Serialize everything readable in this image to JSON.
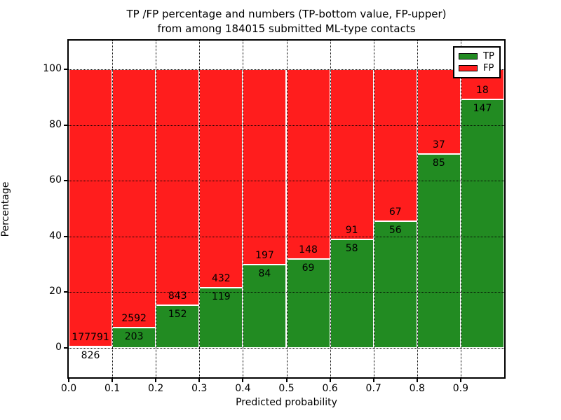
{
  "figure": {
    "title_line1": "TP /FP percentage and numbers (TP-bottom value, FP-upper)",
    "title_line2": "from among 184015 submitted ML-type contacts",
    "xlabel": "Predicted probability",
    "ylabel": "Percentage"
  },
  "legend": {
    "position": "upper right",
    "items": [
      {
        "label": "TP",
        "color": "#228b22"
      },
      {
        "label": "FP",
        "color": "#ff1d1d"
      }
    ]
  },
  "colors": {
    "tp_green": "#228b22",
    "fp_red": "#ff1d1d",
    "grid": "#000000",
    "text": "#000000",
    "background": "#ffffff"
  },
  "chart_data": {
    "type": "bar",
    "stacked": true,
    "normalized_to_percent": true,
    "title": "TP /FP percentage and numbers (TP-bottom value, FP-upper) from among 184015 submitted ML-type contacts",
    "xlabel": "Predicted probability",
    "ylabel": "Percentage",
    "total_contacts": 184015,
    "bin_width": 0.1,
    "bin_starts": [
      0.0,
      0.1,
      0.2,
      0.3,
      0.4,
      0.5,
      0.6,
      0.7,
      0.8,
      0.9
    ],
    "series": [
      {
        "name": "TP",
        "color": "#228b22",
        "counts": [
          826,
          203,
          152,
          119,
          84,
          69,
          58,
          56,
          85,
          147
        ]
      },
      {
        "name": "FP",
        "color": "#ff1d1d",
        "counts": [
          177791,
          2592,
          843,
          432,
          197,
          148,
          91,
          67,
          37,
          18
        ]
      }
    ],
    "tp_percent_approx": [
      0.46,
      7.26,
      15.28,
      21.6,
      29.89,
      31.8,
      38.93,
      45.53,
      69.67,
      89.09
    ],
    "x_tick_labels": [
      "0.0",
      "0.1",
      "0.2",
      "0.3",
      "0.4",
      "0.5",
      "0.6",
      "0.7",
      "0.8",
      "0.9"
    ],
    "y_tick_values": [
      0,
      20,
      40,
      60,
      80,
      100
    ],
    "xlim": [
      0.0,
      1.0
    ],
    "ylim": [
      -10.5,
      110.3
    ],
    "grid": {
      "visible": true,
      "linestyle": "dotted",
      "axes": "both"
    },
    "legend_entries": [
      "TP",
      "FP"
    ]
  }
}
